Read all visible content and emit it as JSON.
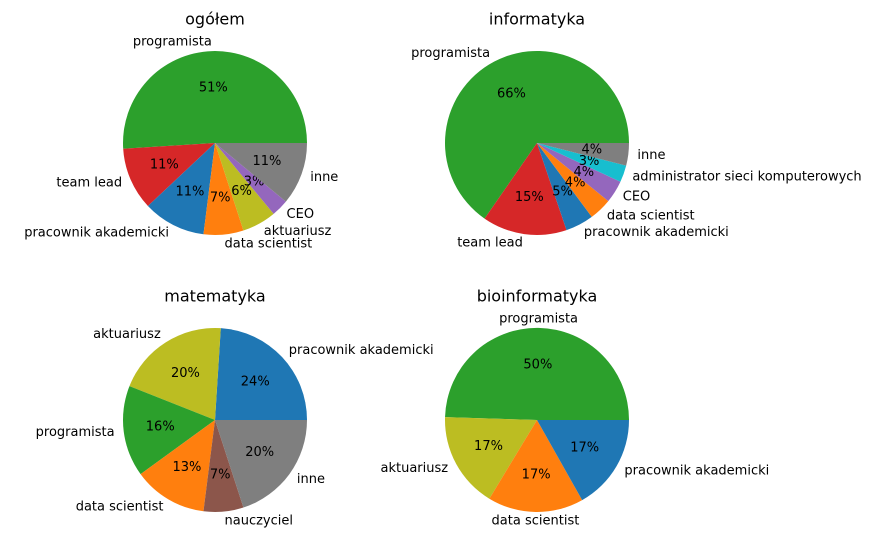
{
  "colors": {
    "programista": "#2ca02c",
    "team lead": "#d62728",
    "pracownik akademicki": "#1f77b4",
    "data scientist": "#ff7f0e",
    "aktuariusz": "#bcbd22",
    "CEO": "#9467bd",
    "inne": "#7f7f7f",
    "administrator sieci komputerowych": "#17becf",
    "nauczyciel": "#8c564b"
  },
  "chart_data": [
    {
      "type": "pie",
      "title": "ogółem",
      "slices": [
        {
          "label": "programista",
          "value": 51,
          "pct": "51%"
        },
        {
          "label": "team lead",
          "value": 11,
          "pct": "11%"
        },
        {
          "label": "pracownik akademicki",
          "value": 11,
          "pct": "11%"
        },
        {
          "label": "data scientist",
          "value": 7,
          "pct": "7%"
        },
        {
          "label": "aktuariusz",
          "value": 6,
          "pct": "6%"
        },
        {
          "label": "CEO",
          "value": 3,
          "pct": "3%"
        },
        {
          "label": "inne",
          "value": 11,
          "pct": "11%"
        }
      ]
    },
    {
      "type": "pie",
      "title": "informatyka",
      "slices": [
        {
          "label": "programista",
          "value": 66,
          "pct": "66%"
        },
        {
          "label": "team lead",
          "value": 15,
          "pct": "15%"
        },
        {
          "label": "pracownik akademicki",
          "value": 5,
          "pct": "5%"
        },
        {
          "label": "data scientist",
          "value": 4,
          "pct": "4%"
        },
        {
          "label": "CEO",
          "value": 4,
          "pct": "4%"
        },
        {
          "label": "administrator sieci komputerowych",
          "value": 3,
          "pct": "3%"
        },
        {
          "label": "inne",
          "value": 4,
          "pct": "4%"
        }
      ]
    },
    {
      "type": "pie",
      "title": "matematyka",
      "slices": [
        {
          "label": "pracownik akademicki",
          "value": 24,
          "pct": "24%"
        },
        {
          "label": "aktuariusz",
          "value": 20,
          "pct": "20%"
        },
        {
          "label": "programista",
          "value": 16,
          "pct": "16%"
        },
        {
          "label": "data scientist",
          "value": 13,
          "pct": "13%"
        },
        {
          "label": "nauczyciel",
          "value": 7,
          "pct": "7%"
        },
        {
          "label": "inne",
          "value": 20,
          "pct": "20%"
        }
      ]
    },
    {
      "type": "pie",
      "title": "bioinformatyka",
      "slices": [
        {
          "label": "programista",
          "value": 50,
          "pct": "50%"
        },
        {
          "label": "aktuariusz",
          "value": 17,
          "pct": "17%"
        },
        {
          "label": "data scientist",
          "value": 17,
          "pct": "17%"
        },
        {
          "label": "pracownik akademicki",
          "value": 17,
          "pct": "17%"
        }
      ]
    }
  ]
}
